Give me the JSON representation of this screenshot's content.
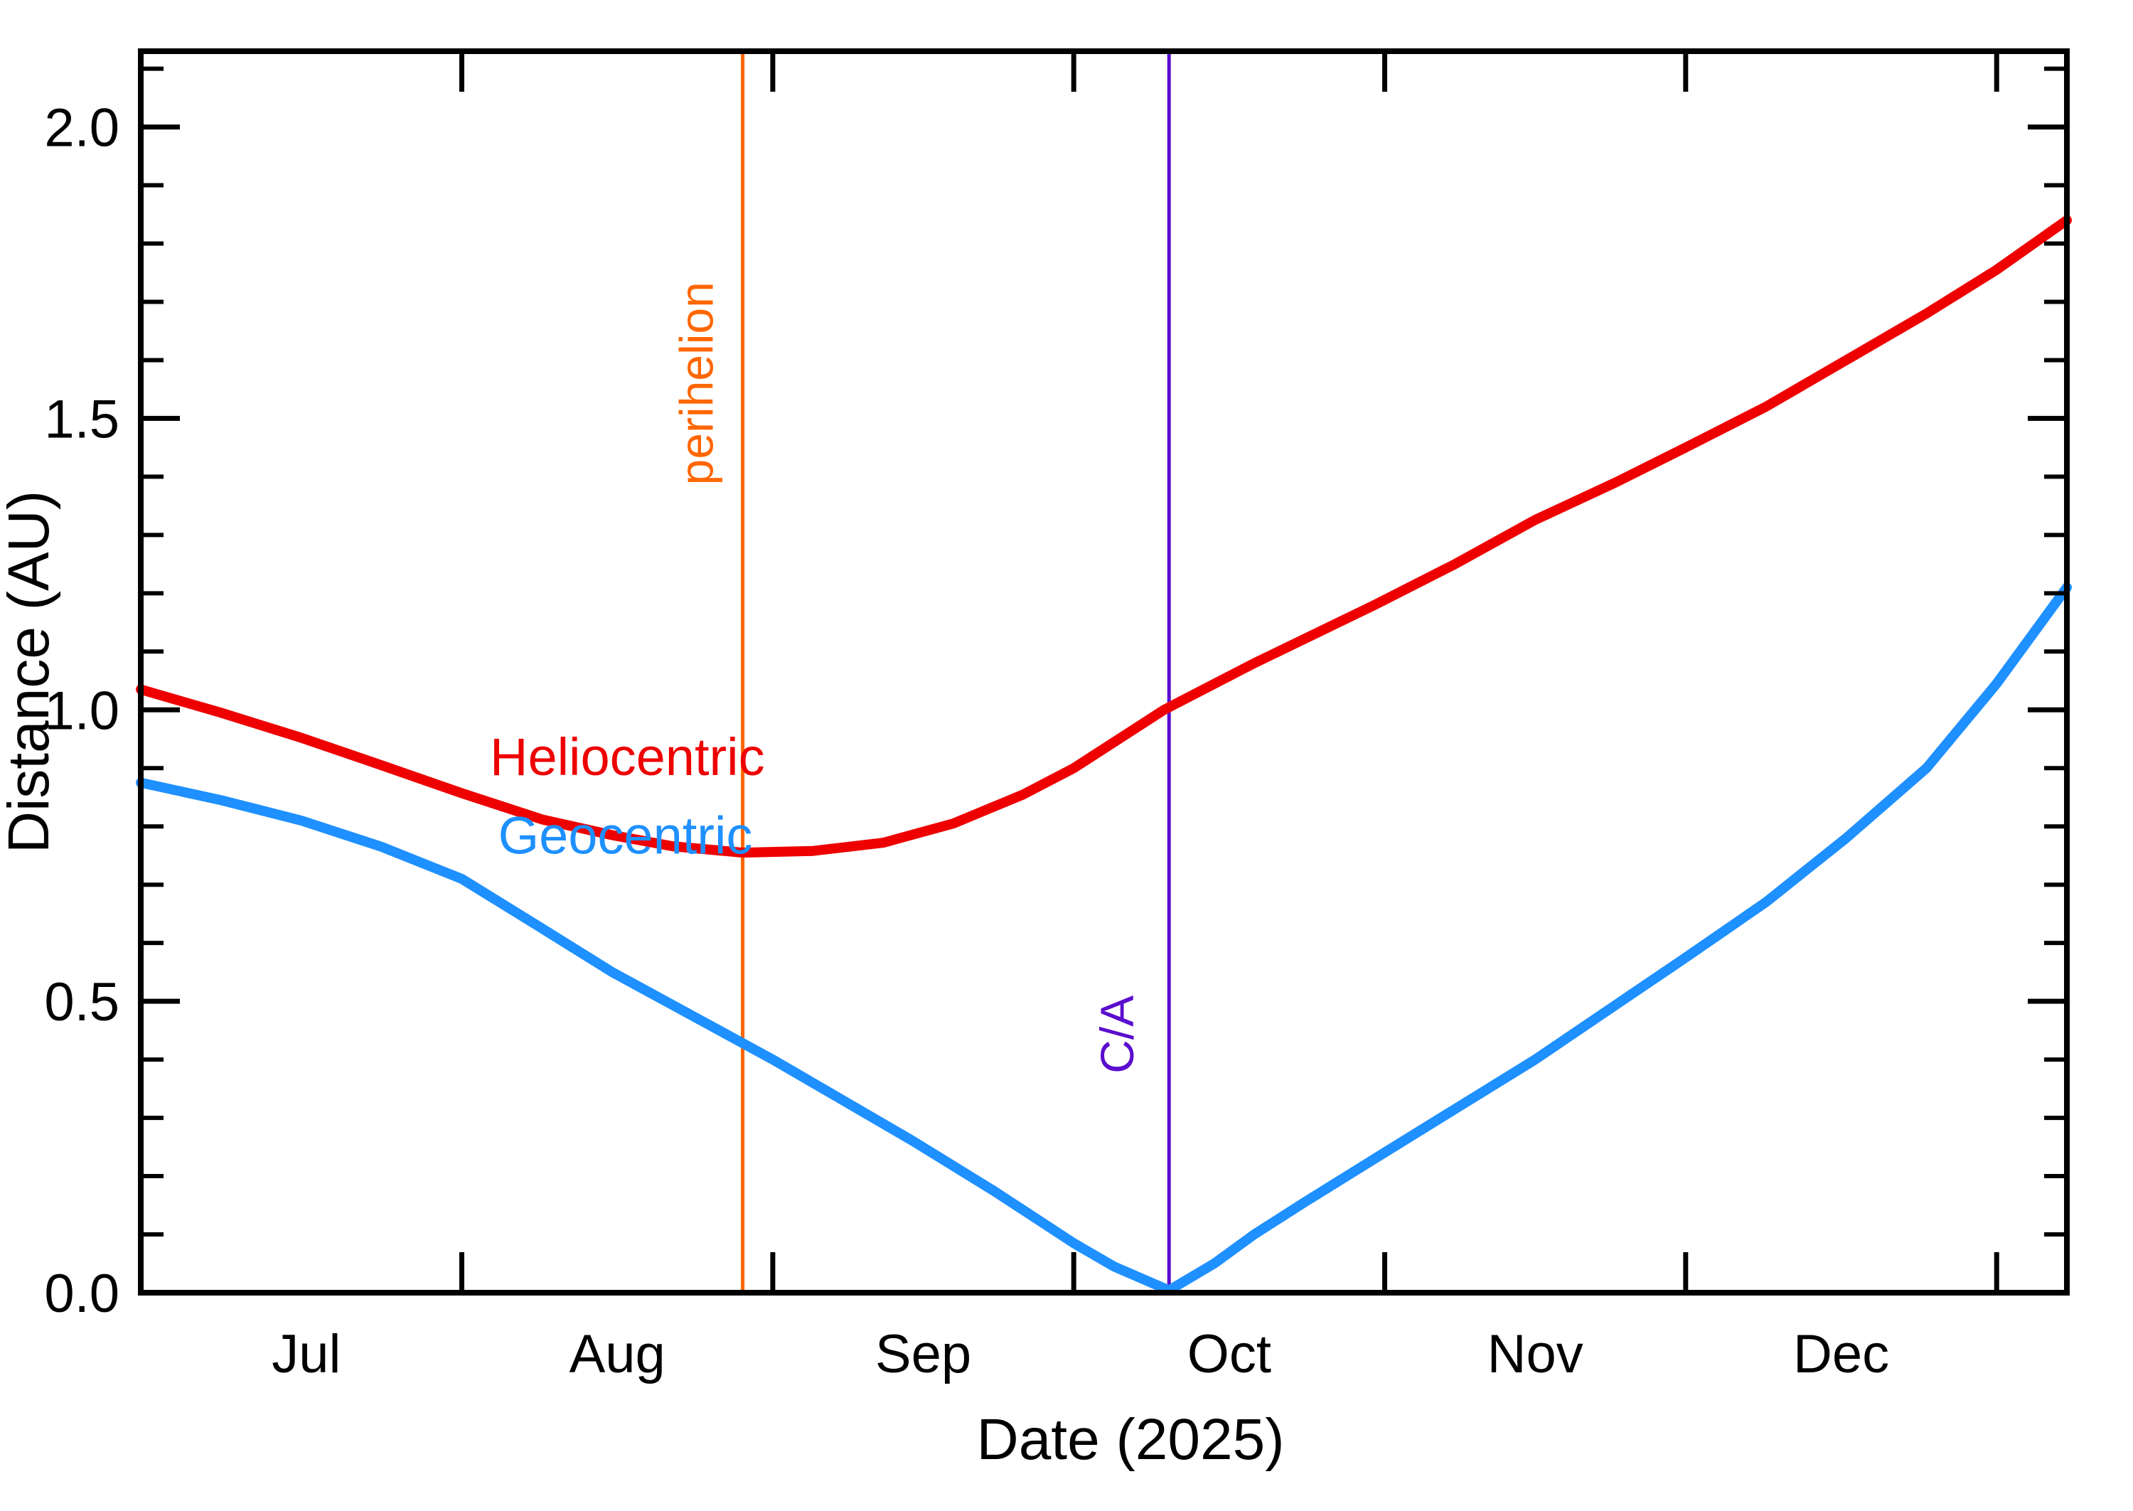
{
  "chart_data": {
    "type": "line",
    "title": "",
    "xlabel": "Date (2025)",
    "ylabel": "Distance (AU)",
    "x_unit": "days since 2025-07-01",
    "xlim": [
      -1,
      191
    ],
    "ylim": [
      0,
      2.13
    ],
    "grid": false,
    "legend_position": "inline-labels",
    "y_major_ticks": [
      0.0,
      0.5,
      1.0,
      1.5,
      2.0
    ],
    "y_major_tick_labels": [
      "0.0",
      "0.5",
      "1.0",
      "1.5",
      "2.0"
    ],
    "y_minor_tick_step": 0.1,
    "x_month_boundary_tick_days": [
      31,
      62,
      92,
      123,
      153,
      184
    ],
    "months": [
      {
        "label": "Jul",
        "mid_day": 15.5
      },
      {
        "label": "Aug",
        "mid_day": 46.5
      },
      {
        "label": "Sep",
        "mid_day": 77
      },
      {
        "label": "Oct",
        "mid_day": 107.5
      },
      {
        "label": "Nov",
        "mid_day": 138
      },
      {
        "label": "Dec",
        "mid_day": 168.5
      }
    ],
    "series": [
      {
        "name": "Heliocentric",
        "color": "#ee0000",
        "label_day": 47.5,
        "label_au": 0.92,
        "points": [
          [
            -1,
            1.035
          ],
          [
            7,
            0.995
          ],
          [
            15,
            0.952
          ],
          [
            23,
            0.905
          ],
          [
            31,
            0.857
          ],
          [
            39,
            0.812
          ],
          [
            46,
            0.785
          ],
          [
            52,
            0.766
          ],
          [
            59,
            0.755
          ],
          [
            66,
            0.758
          ],
          [
            73,
            0.772
          ],
          [
            80,
            0.805
          ],
          [
            87,
            0.855
          ],
          [
            92,
            0.9
          ],
          [
            101,
            1.0
          ],
          [
            110,
            1.08
          ],
          [
            122,
            1.18
          ],
          [
            130,
            1.25
          ],
          [
            138,
            1.326
          ],
          [
            146,
            1.39
          ],
          [
            153,
            1.45
          ],
          [
            161,
            1.52
          ],
          [
            169,
            1.6
          ],
          [
            177,
            1.68
          ],
          [
            184,
            1.755
          ],
          [
            191,
            1.84
          ]
        ]
      },
      {
        "name": "Geocentric",
        "color": "#1e90ff",
        "label_day": 47.3,
        "label_au": 0.785,
        "points": [
          [
            -1,
            0.875
          ],
          [
            7,
            0.845
          ],
          [
            15,
            0.81
          ],
          [
            23,
            0.765
          ],
          [
            31,
            0.71
          ],
          [
            39,
            0.625
          ],
          [
            46,
            0.55
          ],
          [
            54,
            0.475
          ],
          [
            62,
            0.4
          ],
          [
            69,
            0.33
          ],
          [
            76,
            0.26
          ],
          [
            84,
            0.175
          ],
          [
            92,
            0.085
          ],
          [
            96,
            0.045
          ],
          [
            101.5,
            0.004
          ],
          [
            106,
            0.05
          ],
          [
            110,
            0.1
          ],
          [
            115,
            0.155
          ],
          [
            122,
            0.23
          ],
          [
            130,
            0.315
          ],
          [
            138,
            0.4
          ],
          [
            147,
            0.505
          ],
          [
            153,
            0.575
          ],
          [
            161,
            0.67
          ],
          [
            169,
            0.78
          ],
          [
            177,
            0.9
          ],
          [
            184,
            1.045
          ],
          [
            191,
            1.21
          ]
        ]
      }
    ],
    "annotations": [
      {
        "label": "perihelion",
        "color": "#ff6600",
        "day": 59,
        "label_au": 1.56
      },
      {
        "label": "C/A",
        "color": "#5a0dce",
        "day": 101.5,
        "label_au": 0.443
      }
    ]
  },
  "figure": {
    "background": "#ffffff",
    "frame_color": "#000000"
  }
}
